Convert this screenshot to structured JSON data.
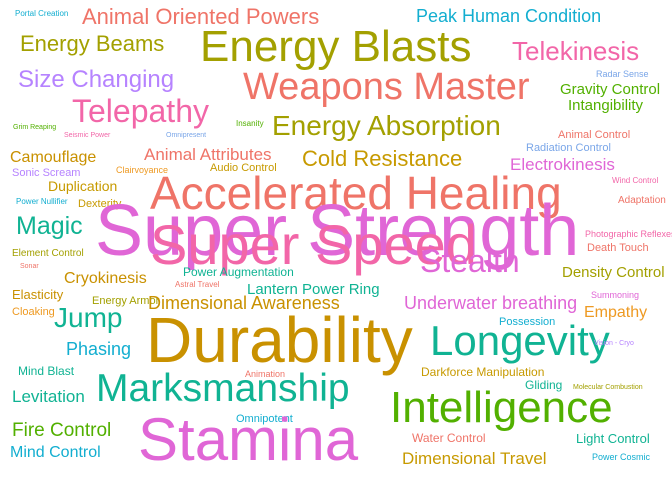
{
  "palette": {
    "pink": "#e066d6",
    "salmon": "#ef7468",
    "olive": "#a3a000",
    "mustard": "#c79a00",
    "gold": "#c99100",
    "teal": "#10b393",
    "cyan": "#13aed0",
    "green": "#52b000",
    "violet": "#b683ff",
    "blue": "#7aa6e8",
    "orange": "#ee9a23",
    "magenta": "#f266a8"
  },
  "words": [
    {
      "id": "portal-creation",
      "text": "Portal Creation"
    },
    {
      "id": "animal-oriented-powers",
      "text": "Animal Oriented Powers"
    },
    {
      "id": "peak-human-condition",
      "text": "Peak Human Condition"
    },
    {
      "id": "energy-beams",
      "text": "Energy Beams"
    },
    {
      "id": "energy-blasts",
      "text": "Energy Blasts"
    },
    {
      "id": "telekinesis",
      "text": "Telekinesis"
    },
    {
      "id": "size-changing",
      "text": "Size Changing"
    },
    {
      "id": "weapons-master",
      "text": "Weapons Master"
    },
    {
      "id": "radar-sense",
      "text": "Radar Sense"
    },
    {
      "id": "gravity-control",
      "text": "Gravity Control"
    },
    {
      "id": "telepathy",
      "text": "Telepathy"
    },
    {
      "id": "intangibility",
      "text": "Intangibility"
    },
    {
      "id": "energy-absorption",
      "text": "Energy Absorption"
    },
    {
      "id": "grim-reaping",
      "text": "Grim Reaping"
    },
    {
      "id": "seismic-power",
      "text": "Seismic Power"
    },
    {
      "id": "omnipresent",
      "text": "Omnipresent"
    },
    {
      "id": "insanity",
      "text": "Insanity"
    },
    {
      "id": "animal-control",
      "text": "Animal Control"
    },
    {
      "id": "radiation-control",
      "text": "Radiation Control"
    },
    {
      "id": "camouflage",
      "text": "Camouflage"
    },
    {
      "id": "animal-attributes",
      "text": "Animal Attributes"
    },
    {
      "id": "cold-resistance",
      "text": "Cold Resistance"
    },
    {
      "id": "electrokinesis",
      "text": "Electrokinesis"
    },
    {
      "id": "sonic-scream",
      "text": "Sonic Scream"
    },
    {
      "id": "clairvoyance",
      "text": "Clairvoyance"
    },
    {
      "id": "audio-control",
      "text": "Audio Control"
    },
    {
      "id": "wind-control",
      "text": "Wind Control"
    },
    {
      "id": "duplication",
      "text": "Duplication"
    },
    {
      "id": "accelerated-healing",
      "text": "Accelerated Healing"
    },
    {
      "id": "power-nullifier",
      "text": "Power Nullifier"
    },
    {
      "id": "dexterity",
      "text": "Dexterity"
    },
    {
      "id": "adaptation",
      "text": "Adaptation"
    },
    {
      "id": "magic",
      "text": "Magic"
    },
    {
      "id": "super-strength",
      "text": "Super Strength"
    },
    {
      "id": "super-speed",
      "text": "Super Speed"
    },
    {
      "id": "photographic-reflexes",
      "text": "Photographic Reflexes"
    },
    {
      "id": "stealth",
      "text": "Stealth"
    },
    {
      "id": "death-touch",
      "text": "Death Touch"
    },
    {
      "id": "element-control",
      "text": "Element Control"
    },
    {
      "id": "sonar",
      "text": "Sonar"
    },
    {
      "id": "cryokinesis",
      "text": "Cryokinesis"
    },
    {
      "id": "power-augmentation",
      "text": "Power Augmentation"
    },
    {
      "id": "astral-travel",
      "text": "Astral Travel"
    },
    {
      "id": "density-control",
      "text": "Density Control"
    },
    {
      "id": "elasticity",
      "text": "Elasticity"
    },
    {
      "id": "lantern-power-ring",
      "text": "Lantern Power Ring"
    },
    {
      "id": "summoning",
      "text": "Summoning"
    },
    {
      "id": "energy-armor",
      "text": "Energy Armor"
    },
    {
      "id": "dimensional-awareness",
      "text": "Dimensional Awareness"
    },
    {
      "id": "underwater-breathing",
      "text": "Underwater breathing"
    },
    {
      "id": "cloaking",
      "text": "Cloaking"
    },
    {
      "id": "jump",
      "text": "Jump"
    },
    {
      "id": "empathy",
      "text": "Empathy"
    },
    {
      "id": "possession",
      "text": "Possession"
    },
    {
      "id": "durability",
      "text": "Durability"
    },
    {
      "id": "longevity",
      "text": "Longevity"
    },
    {
      "id": "phasing",
      "text": "Phasing"
    },
    {
      "id": "vision-cryo",
      "text": "Vision - Cryo"
    },
    {
      "id": "mind-blast",
      "text": "Mind Blast"
    },
    {
      "id": "darkforce-manipulation",
      "text": "Darkforce Manipulation"
    },
    {
      "id": "animation",
      "text": "Animation"
    },
    {
      "id": "marksmanship",
      "text": "Marksmanship"
    },
    {
      "id": "gliding",
      "text": "Gliding"
    },
    {
      "id": "molecular-combustion",
      "text": "Molecular Combustion"
    },
    {
      "id": "levitation",
      "text": "Levitation"
    },
    {
      "id": "intelligence",
      "text": "Intelligence"
    },
    {
      "id": "omnipotent",
      "text": "Omnipotent"
    },
    {
      "id": "fire-control",
      "text": "Fire Control"
    },
    {
      "id": "stamina",
      "text": "Stamina"
    },
    {
      "id": "water-control",
      "text": "Water Control"
    },
    {
      "id": "light-control",
      "text": "Light Control"
    },
    {
      "id": "mind-control",
      "text": "Mind Control"
    },
    {
      "id": "dimensional-travel",
      "text": "Dimensional Travel"
    },
    {
      "id": "power-cosmic",
      "text": "Power Cosmic"
    }
  ]
}
